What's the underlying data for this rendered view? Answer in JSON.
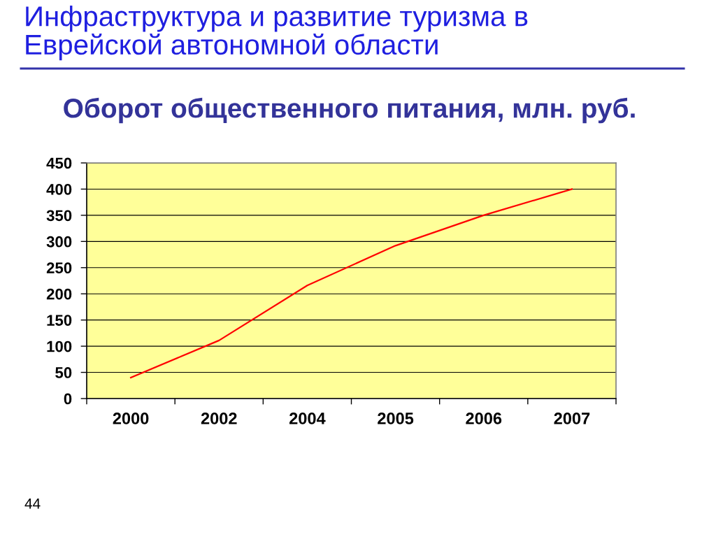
{
  "chart_data": {
    "type": "line",
    "title": "Инфраструктура и развитие туризма в\nЕврейской автономной области",
    "subtitle": "Оборот общественного питания, млн. руб.",
    "categories": [
      "2000",
      "2002",
      "2004",
      "2005",
      "2006",
      "2007"
    ],
    "series": [
      {
        "color": "#ff0000",
        "values": [
          40,
          111,
          216,
          292,
          350,
          400
        ]
      }
    ],
    "ylim": [
      0,
      450
    ],
    "yticks": [
      0,
      50,
      100,
      150,
      200,
      250,
      300,
      350,
      400,
      450
    ],
    "grid": "y",
    "marker": "none",
    "line_style": "solid",
    "annotations": [
      "44"
    ]
  }
}
